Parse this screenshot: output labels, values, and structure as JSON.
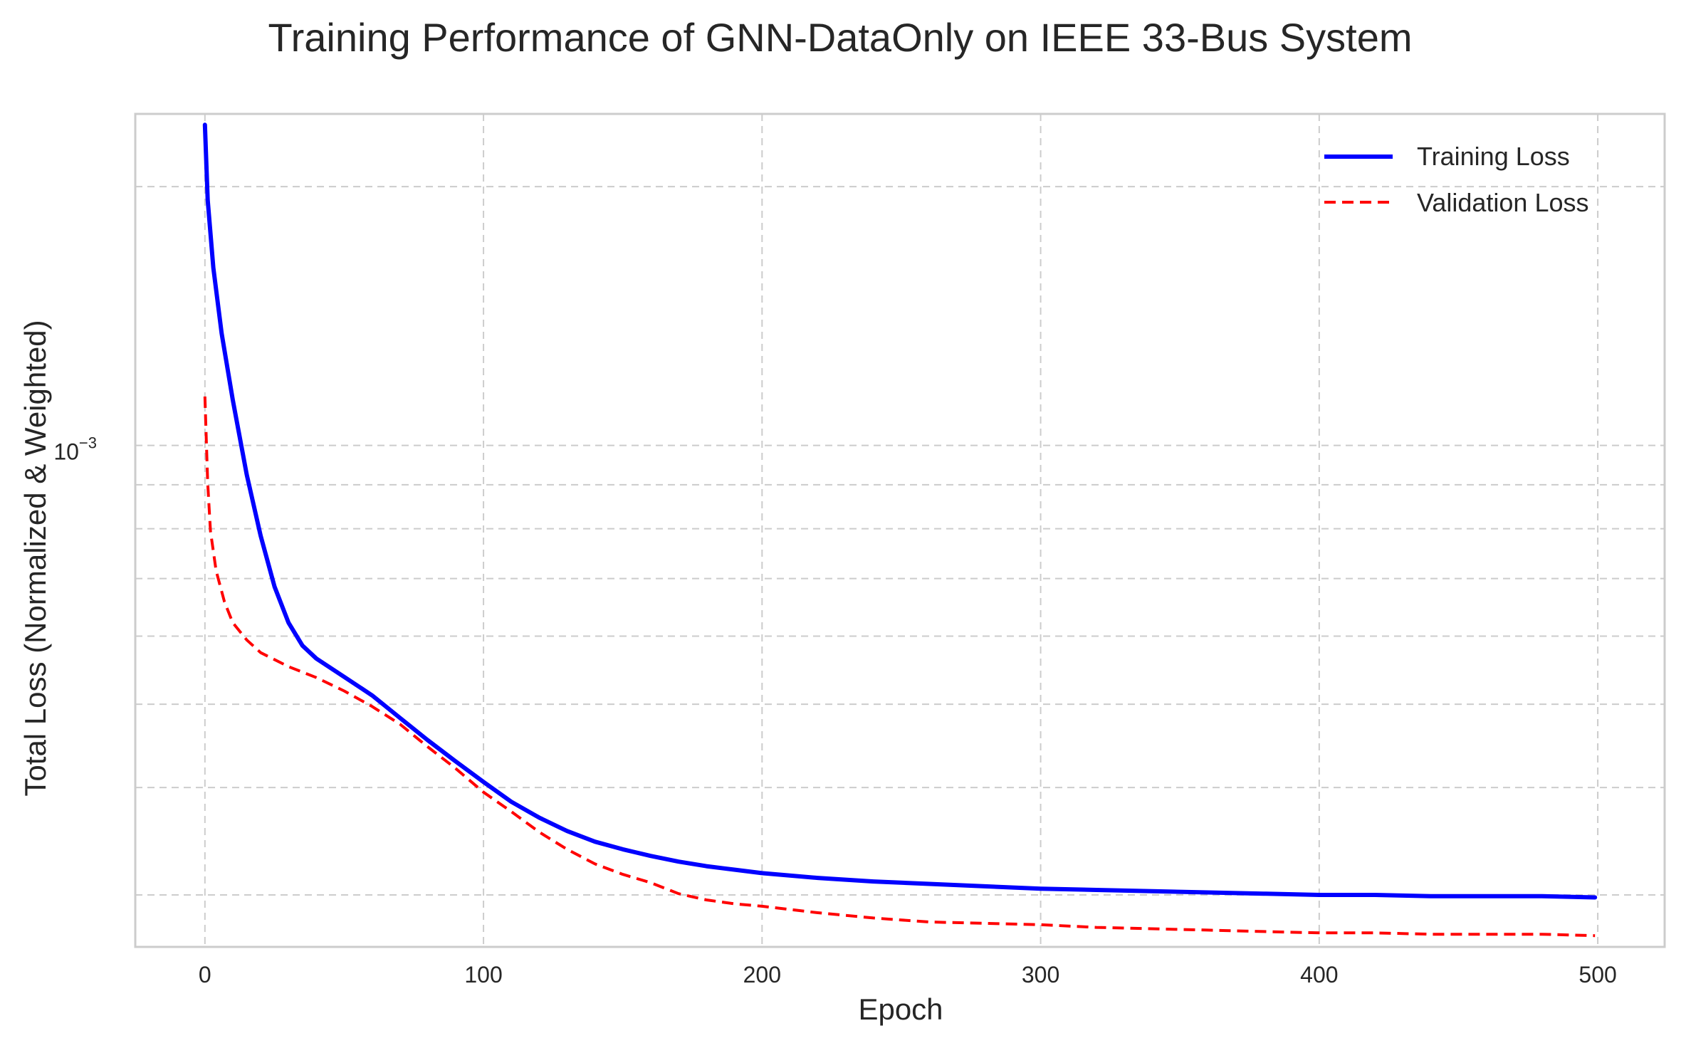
{
  "chart_data": {
    "type": "line",
    "title": "Training Performance of GNN-DataOnly on IEEE 33-Bus System",
    "xlabel": "Epoch",
    "ylabel": "Total Loss (Normalized & Weighted)",
    "yscale": "log",
    "xlim": [
      -25,
      524
    ],
    "ylim": [
      0.000261,
      0.00243
    ],
    "x_ticks": [
      0,
      100,
      200,
      300,
      400,
      500
    ],
    "x_tick_labels": [
      "0",
      "100",
      "200",
      "300",
      "400",
      "500"
    ],
    "y_major_ticks": [
      0.001
    ],
    "y_major_tick_label": {
      "base": "10",
      "exponent": "−3"
    },
    "y_minor_ticks": [
      0.0003,
      0.0004,
      0.0005,
      0.0006,
      0.0007,
      0.0008,
      0.0009,
      0.002
    ],
    "grid": true,
    "legend_position": "top-right",
    "series": [
      {
        "name": "Training Loss",
        "color": "#0000ff",
        "style": "solid",
        "x": [
          0,
          1,
          3,
          6,
          10,
          15,
          20,
          25,
          30,
          35,
          40,
          50,
          60,
          70,
          80,
          90,
          100,
          110,
          120,
          130,
          140,
          150,
          160,
          170,
          180,
          190,
          200,
          220,
          240,
          260,
          280,
          300,
          320,
          340,
          360,
          380,
          400,
          420,
          440,
          460,
          480,
          499
        ],
        "y": [
          0.00236,
          0.00193,
          0.00161,
          0.00135,
          0.00113,
          0.000925,
          0.000785,
          0.000685,
          0.000622,
          0.000585,
          0.000565,
          0.000538,
          0.000512,
          0.000482,
          0.000454,
          0.000429,
          0.000406,
          0.000385,
          0.000369,
          0.000356,
          0.000346,
          0.000339,
          0.000333,
          0.000328,
          0.000324,
          0.000321,
          0.000318,
          0.000314,
          0.000311,
          0.000309,
          0.000307,
          0.000305,
          0.000304,
          0.000303,
          0.000302,
          0.000301,
          0.0003,
          0.0003,
          0.000299,
          0.000299,
          0.000299,
          0.000298
        ]
      },
      {
        "name": "Validation Loss",
        "color": "#ff0000",
        "style": "dashed",
        "x": [
          0,
          1,
          2,
          4,
          7,
          10,
          15,
          20,
          30,
          40,
          50,
          60,
          70,
          80,
          90,
          100,
          110,
          120,
          130,
          140,
          150,
          160,
          170,
          180,
          190,
          200,
          220,
          240,
          260,
          280,
          300,
          320,
          340,
          360,
          380,
          400,
          420,
          440,
          460,
          480,
          499
        ],
        "y": [
          0.00114,
          0.000905,
          0.000795,
          0.000715,
          0.000658,
          0.000622,
          0.000594,
          0.000574,
          0.000553,
          0.000537,
          0.000518,
          0.000497,
          0.000474,
          0.000446,
          0.000421,
          0.000395,
          0.000375,
          0.000355,
          0.000339,
          0.000326,
          0.000317,
          0.00031,
          0.000301,
          0.000296,
          0.000293,
          0.000291,
          0.000286,
          0.000282,
          0.000279,
          0.000278,
          0.000277,
          0.000275,
          0.000274,
          0.000273,
          0.000272,
          0.000271,
          0.000271,
          0.00027,
          0.00027,
          0.00027,
          0.000269
        ]
      }
    ]
  }
}
